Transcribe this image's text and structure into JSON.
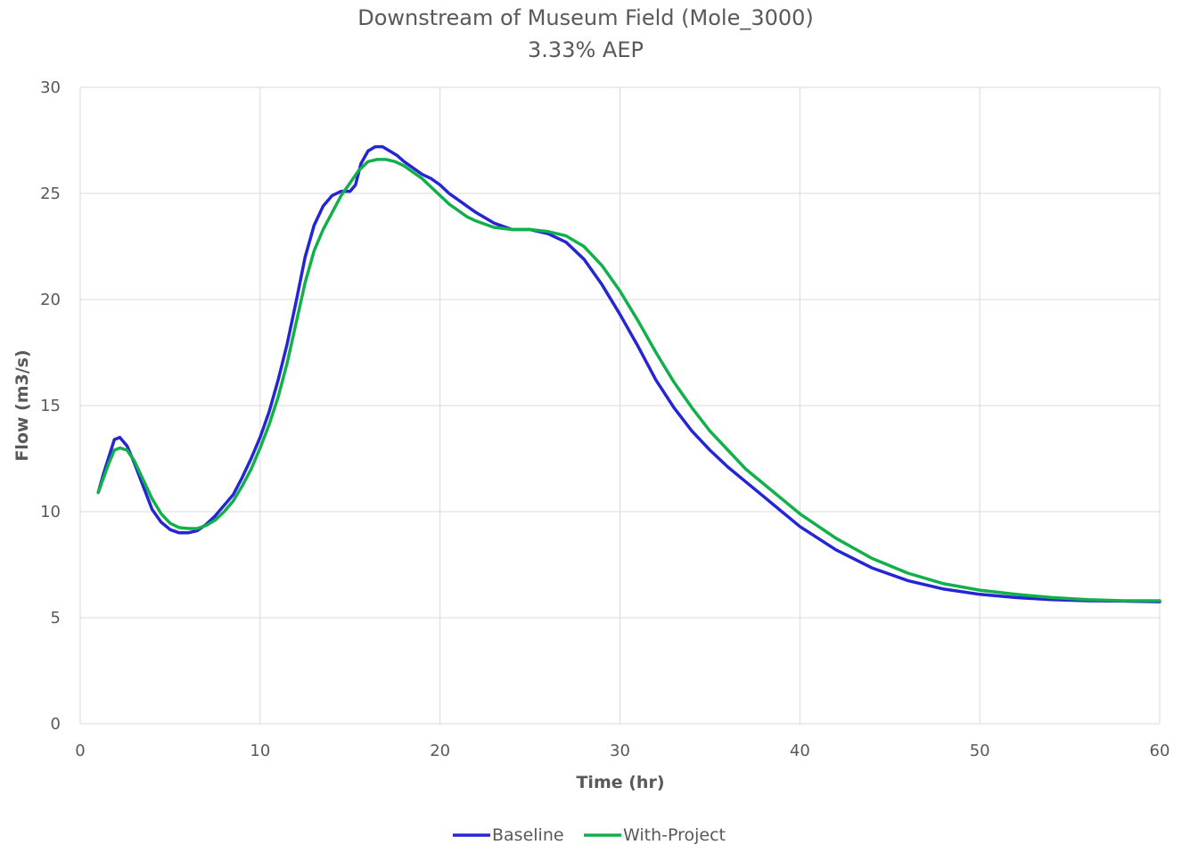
{
  "chart_data": {
    "type": "line",
    "title": "Downstream of Museum Field (Mole_3000)",
    "subtitle": "3.33% AEP",
    "xlabel": "Time (hr)",
    "ylabel": "Flow (m3/s)",
    "xlim": [
      0,
      60
    ],
    "ylim": [
      0,
      30
    ],
    "x_ticks": [
      0,
      10,
      20,
      30,
      40,
      50,
      60
    ],
    "y_ticks": [
      0,
      5,
      10,
      15,
      20,
      25,
      30
    ],
    "grid": true,
    "legend_position": "bottom-center",
    "series": [
      {
        "name": "Baseline",
        "color": "#2525d6",
        "x": [
          1,
          1.3,
          1.6,
          1.9,
          2.2,
          2.6,
          3,
          3.5,
          4,
          4.5,
          5,
          5.5,
          6,
          6.5,
          7,
          7.5,
          8,
          8.5,
          9,
          9.5,
          10,
          10.5,
          11,
          11.5,
          12,
          12.5,
          13,
          13.5,
          14,
          14.5,
          15,
          15.3,
          15.6,
          16,
          16.4,
          16.8,
          17.2,
          17.6,
          18,
          18.5,
          19,
          19.5,
          20,
          20.5,
          21,
          21.5,
          22,
          23,
          24,
          25,
          26,
          27,
          28,
          29,
          30,
          31,
          32,
          33,
          34,
          35,
          36,
          37,
          38,
          39,
          40,
          42,
          44,
          46,
          48,
          50,
          52,
          54,
          56,
          58,
          60
        ],
        "y": [
          10.9,
          11.8,
          12.6,
          13.4,
          13.5,
          13.1,
          12.3,
          11.2,
          10.1,
          9.5,
          9.15,
          9.0,
          9.0,
          9.1,
          9.4,
          9.8,
          10.3,
          10.8,
          11.6,
          12.5,
          13.5,
          14.7,
          16.2,
          17.9,
          19.9,
          22.0,
          23.5,
          24.4,
          24.9,
          25.1,
          25.1,
          25.4,
          26.4,
          27.0,
          27.2,
          27.2,
          27.0,
          26.8,
          26.5,
          26.2,
          25.9,
          25.7,
          25.4,
          25.0,
          24.7,
          24.4,
          24.1,
          23.6,
          23.3,
          23.3,
          23.1,
          22.7,
          21.9,
          20.7,
          19.3,
          17.8,
          16.2,
          14.9,
          13.8,
          12.9,
          12.1,
          11.4,
          10.7,
          10.0,
          9.3,
          8.2,
          7.35,
          6.75,
          6.35,
          6.1,
          5.95,
          5.85,
          5.8,
          5.78,
          5.75
        ]
      },
      {
        "name": "With-Project",
        "color": "#11b04b",
        "x": [
          1,
          1.3,
          1.6,
          1.9,
          2.2,
          2.6,
          3,
          3.5,
          4,
          4.5,
          5,
          5.5,
          6,
          6.5,
          7,
          7.5,
          8,
          8.5,
          9,
          9.5,
          10,
          10.5,
          11,
          11.5,
          12,
          12.5,
          13,
          13.5,
          14,
          14.5,
          15,
          15.5,
          16,
          16.5,
          17,
          17.5,
          18,
          18.5,
          19,
          19.5,
          20,
          20.5,
          21,
          21.5,
          22,
          23,
          24,
          25,
          26,
          27,
          28,
          29,
          30,
          31,
          32,
          33,
          34,
          35,
          36,
          37,
          38,
          39,
          40,
          42,
          44,
          46,
          48,
          50,
          52,
          54,
          56,
          58,
          60
        ],
        "y": [
          10.9,
          11.6,
          12.3,
          12.9,
          13.0,
          12.9,
          12.4,
          11.5,
          10.6,
          9.9,
          9.45,
          9.25,
          9.2,
          9.2,
          9.35,
          9.6,
          10.0,
          10.5,
          11.2,
          12.0,
          13.0,
          14.1,
          15.4,
          17.0,
          18.9,
          20.8,
          22.3,
          23.3,
          24.1,
          24.9,
          25.5,
          26.1,
          26.5,
          26.6,
          26.6,
          26.5,
          26.3,
          26.0,
          25.7,
          25.3,
          24.9,
          24.5,
          24.2,
          23.9,
          23.7,
          23.4,
          23.3,
          23.3,
          23.2,
          23.0,
          22.5,
          21.6,
          20.4,
          19.0,
          17.5,
          16.1,
          14.9,
          13.8,
          12.9,
          12.0,
          11.3,
          10.6,
          9.9,
          8.75,
          7.8,
          7.1,
          6.6,
          6.3,
          6.1,
          5.95,
          5.85,
          5.8,
          5.8
        ]
      }
    ]
  }
}
